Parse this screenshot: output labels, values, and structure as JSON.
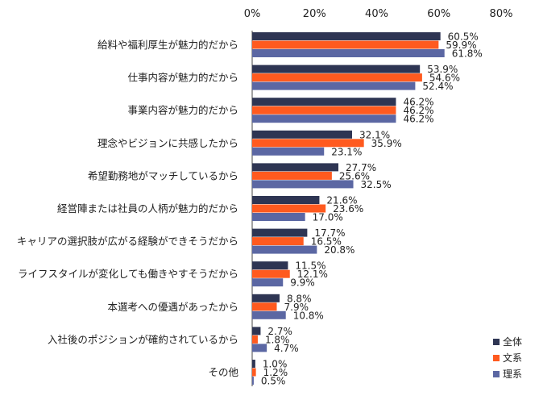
{
  "chart_data": {
    "type": "bar",
    "orientation": "horizontal",
    "xlim": [
      0,
      80
    ],
    "x_ticks": [
      "0%",
      "20%",
      "40%",
      "60%",
      "80%"
    ],
    "x_tick_values": [
      0,
      20,
      40,
      60,
      80
    ],
    "grid": false,
    "legend_position": "bottom-right",
    "value_suffix": "%",
    "categories": [
      "給料や福利厚生が魅力的だから",
      "仕事内容が魅力的だから",
      "事業内容が魅力的だから",
      "理念やビジョンに共感したから",
      "希望勤務地がマッチしているから",
      "経営陣または社員の人柄が魅力的だから",
      "キャリアの選択肢が広がる経験ができそうだから",
      "ライフスタイルが変化しても働きやすそうだから",
      "本選考への優遇があったから",
      "入社後のポジションが確約されているから",
      "その他"
    ],
    "series": [
      {
        "name": "全体",
        "color": "#2e3553",
        "values": [
          60.5,
          53.9,
          46.2,
          32.1,
          27.7,
          21.6,
          17.7,
          11.5,
          8.8,
          2.7,
          1.0
        ]
      },
      {
        "name": "文系",
        "color": "#ff5a1f",
        "values": [
          59.9,
          54.6,
          46.2,
          35.9,
          25.6,
          23.6,
          16.5,
          12.1,
          7.9,
          1.8,
          1.2
        ]
      },
      {
        "name": "理系",
        "color": "#5b67a3",
        "values": [
          61.8,
          52.4,
          46.2,
          23.1,
          32.5,
          17.0,
          20.8,
          9.9,
          10.8,
          4.7,
          0.5
        ]
      }
    ]
  }
}
